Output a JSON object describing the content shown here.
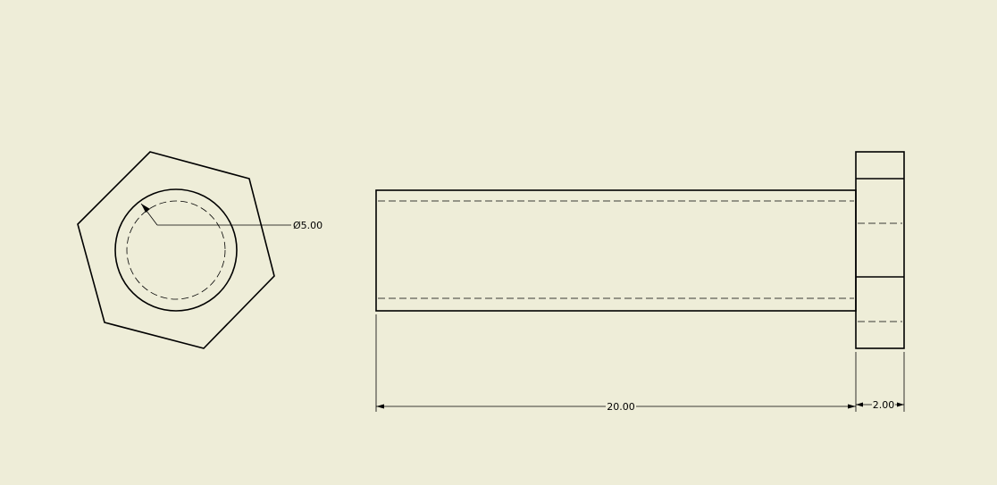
{
  "drawing": {
    "background": "#eeedd8",
    "line_color": "#000000",
    "views": {
      "end_view": {
        "diameter_label": "Ø5.00"
      },
      "side_view": {
        "length_label": "20.00",
        "head_label": "2.00"
      }
    }
  }
}
